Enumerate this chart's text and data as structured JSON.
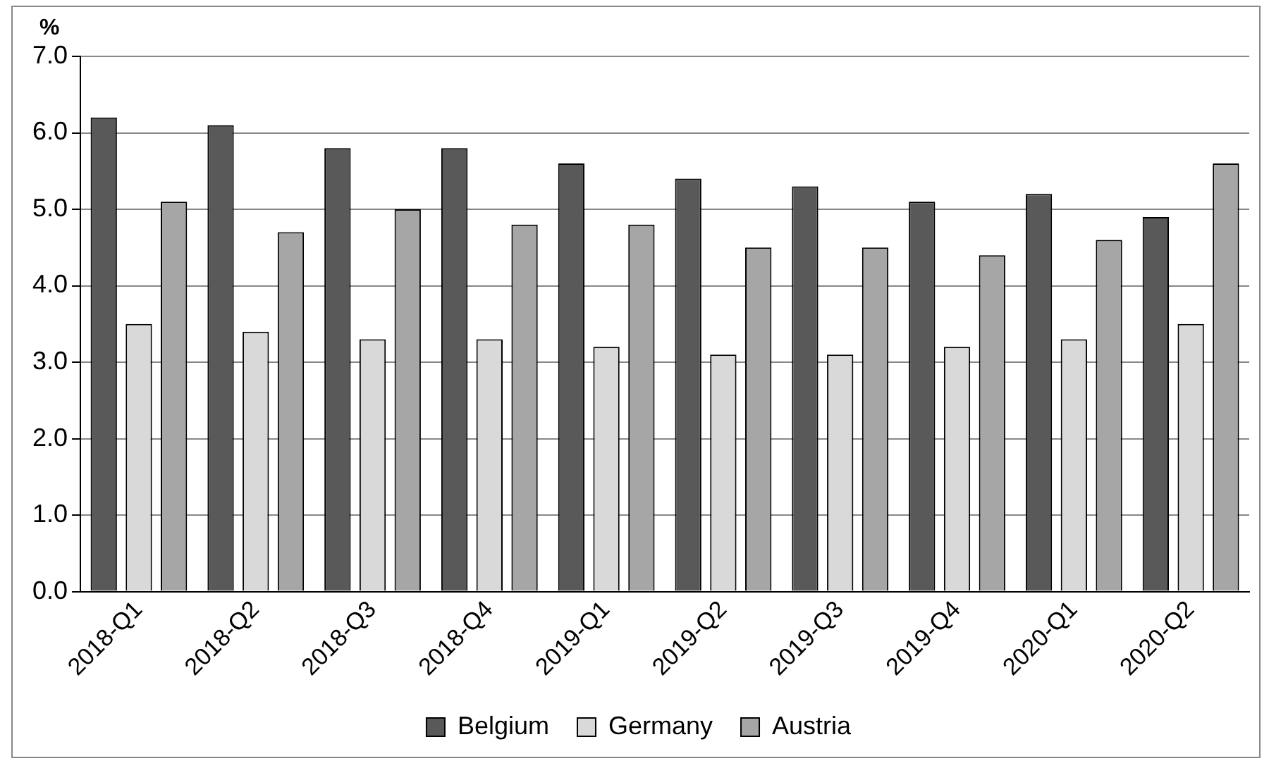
{
  "chart_data": {
    "type": "bar",
    "ylabel": "%",
    "categories": [
      "2018-Q1",
      "2018-Q2",
      "2018-Q3",
      "2018-Q4",
      "2019-Q1",
      "2019-Q2",
      "2019-Q3",
      "2019-Q4",
      "2020-Q1",
      "2020-Q2"
    ],
    "series": [
      {
        "name": "Belgium",
        "color": "#595959",
        "values": [
          6.2,
          6.1,
          5.8,
          5.8,
          5.6,
          5.4,
          5.3,
          5.1,
          5.2,
          4.9
        ]
      },
      {
        "name": "Germany",
        "color": "#d9d9d9",
        "values": [
          3.5,
          3.4,
          3.3,
          3.3,
          3.2,
          3.1,
          3.1,
          3.2,
          3.3,
          3.5
        ]
      },
      {
        "name": "Austria",
        "color": "#a6a6a6",
        "values": [
          5.1,
          4.7,
          5.0,
          4.8,
          4.8,
          4.5,
          4.5,
          4.4,
          4.6,
          5.6
        ]
      }
    ],
    "ylim": [
      0,
      7
    ],
    "yticks": [
      {
        "value": 0,
        "label": "0.0"
      },
      {
        "value": 1,
        "label": "1.0"
      },
      {
        "value": 2,
        "label": "2.0"
      },
      {
        "value": 3,
        "label": "3.0"
      },
      {
        "value": 4,
        "label": "4.0"
      },
      {
        "value": 5,
        "label": "5.0"
      },
      {
        "value": 6,
        "label": "6.0"
      },
      {
        "value": 7,
        "label": "7.0"
      }
    ],
    "grid": "y",
    "legend": "bottom"
  }
}
